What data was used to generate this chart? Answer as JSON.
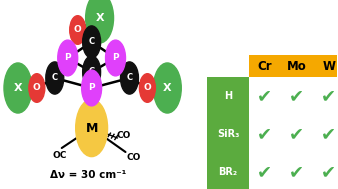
{
  "bg_color": "#ffffff",
  "atoms": {
    "C_color": "#111111",
    "P_color": "#e040fb",
    "O_color": "#e53935",
    "X_color": "#4caf50",
    "M_color": "#f5c842"
  },
  "table": {
    "header_bg": "#f5a800",
    "header_text": "#000000",
    "row_bg": "#5bab3e",
    "row_text": "#ffffff",
    "cols": [
      "Cr",
      "Mo",
      "W"
    ],
    "rows": [
      "H",
      "SiR₃",
      "BR₂"
    ],
    "check_color": "#4caf50"
  },
  "delta_nu_text": "Δν = 30 cm⁻¹"
}
